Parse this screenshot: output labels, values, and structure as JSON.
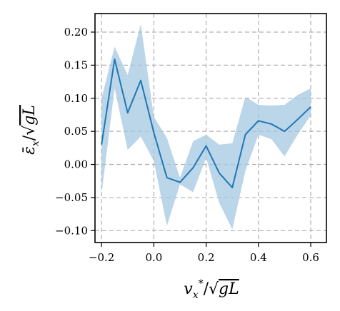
{
  "chart_data": {
    "type": "line",
    "xlabel": "v_x^*/√gL",
    "ylabel": "ε̄_x/√gL",
    "xlim": [
      -0.225,
      0.66
    ],
    "ylim": [
      -0.118,
      0.228
    ],
    "xticks": [
      -0.2,
      0.0,
      0.2,
      0.4,
      0.6
    ],
    "xtick_labels": [
      "−0.2",
      "0.0",
      "0.2",
      "0.4",
      "0.6"
    ],
    "yticks": [
      -0.1,
      -0.05,
      0.0,
      0.05,
      0.1,
      0.15,
      0.2
    ],
    "ytick_labels": [
      "−0.10",
      "−0.05",
      "0.00",
      "0.05",
      "0.10",
      "0.15",
      "0.20"
    ],
    "grid": true,
    "legend": "none",
    "series": [
      {
        "x": [
          -0.2,
          -0.15,
          -0.1,
          -0.05,
          0.0,
          0.05,
          0.1,
          0.15,
          0.2,
          0.25,
          0.3,
          0.35,
          0.4,
          0.45,
          0.5,
          0.55,
          0.6
        ],
        "y": [
          0.03,
          0.159,
          0.078,
          0.127,
          0.048,
          -0.02,
          -0.027,
          -0.005,
          0.028,
          -0.013,
          -0.035,
          0.045,
          0.066,
          0.061,
          0.05,
          0.068,
          0.087
        ],
        "lower": [
          -0.045,
          0.115,
          0.022,
          0.042,
          0.005,
          -0.093,
          -0.03,
          -0.042,
          0.01,
          -0.058,
          -0.098,
          -0.01,
          0.045,
          0.038,
          0.012,
          0.045,
          0.074
        ],
        "upper": [
          0.1,
          0.178,
          0.135,
          0.212,
          0.072,
          0.04,
          -0.02,
          0.035,
          0.045,
          0.03,
          0.032,
          0.102,
          0.09,
          0.089,
          0.09,
          0.105,
          0.115
        ]
      }
    ],
    "colors": {
      "line": "#1f77b4",
      "band": "#a6c8e1",
      "grid": "#b0b0b0"
    }
  }
}
